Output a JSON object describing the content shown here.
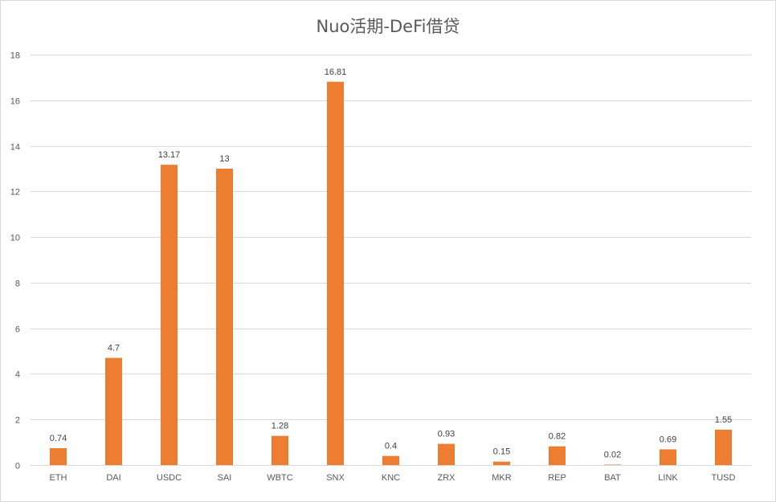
{
  "chart_data": {
    "type": "bar",
    "title": "Nuo活期-DeFi借贷",
    "xlabel": "",
    "ylabel": "",
    "categories": [
      "ETH",
      "DAI",
      "USDC",
      "SAI",
      "WBTC",
      "SNX",
      "KNC",
      "ZRX",
      "MKR",
      "REP",
      "BAT",
      "LINK",
      "TUSD"
    ],
    "values": [
      0.74,
      4.7,
      13.17,
      13,
      1.28,
      16.81,
      0.4,
      0.93,
      0.15,
      0.82,
      0.02,
      0.69,
      1.55
    ],
    "data_labels": [
      "0.74",
      "4.7",
      "13.17",
      "13",
      "1.28",
      "16.81",
      "0.4",
      "0.93",
      "0.15",
      "0.82",
      "0.02",
      "0.69",
      "1.55"
    ],
    "ylim": [
      0,
      18
    ],
    "yticks": [
      0,
      2,
      4,
      6,
      8,
      10,
      12,
      14,
      16,
      18
    ],
    "grid": true,
    "legend": "none",
    "bar_color": "#ED7D31",
    "grid_color": "#D9D9D9"
  }
}
